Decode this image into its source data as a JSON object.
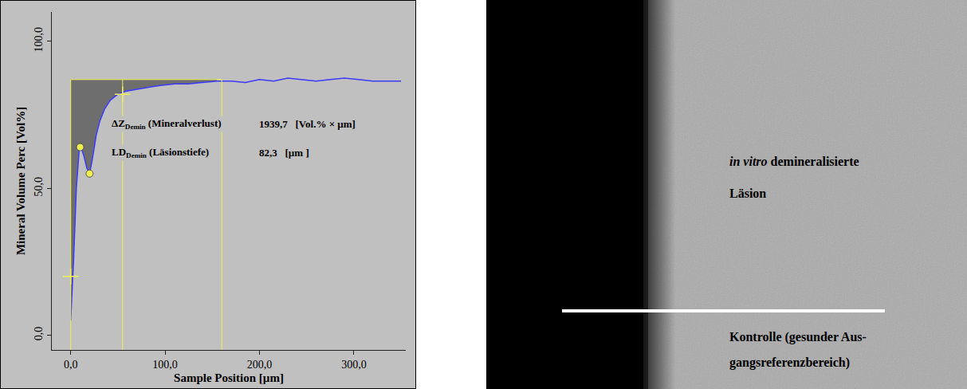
{
  "chart_data": {
    "type": "line",
    "x_label": "Sample Position [µm]",
    "y_label": "Mineral Volume Perc [Vol%]",
    "xlim": [
      -20,
      355
    ],
    "ylim": [
      -5,
      110
    ],
    "xticks": [
      {
        "value": 0,
        "label": "0,0"
      },
      {
        "value": 100,
        "label": "100,0"
      },
      {
        "value": 200,
        "label": "200,0"
      },
      {
        "value": 300,
        "label": "300,0"
      }
    ],
    "yticks": [
      {
        "value": 0,
        "label": "0,0"
      },
      {
        "value": 50,
        "label": "50,0"
      },
      {
        "value": 100,
        "label": "100,0"
      }
    ],
    "grid": false,
    "series": [
      {
        "color": "#3a3aff",
        "x": [
          0,
          3,
          6,
          9,
          11,
          14,
          17,
          20,
          23,
          27,
          31,
          36,
          42,
          50,
          58,
          66,
          75,
          85,
          95,
          110,
          125,
          140,
          155,
          170,
          185,
          200,
          215,
          230,
          245,
          260,
          275,
          290,
          305,
          320,
          335,
          350
        ],
        "values": [
          5,
          25,
          50,
          63,
          64,
          61,
          57,
          55,
          60,
          68,
          73,
          77,
          80,
          82,
          83,
          83.5,
          84,
          84.5,
          85,
          85.5,
          85.5,
          86,
          86.5,
          86.5,
          86,
          87,
          86.5,
          87.5,
          87,
          86.5,
          87,
          87.5,
          87,
          86.5,
          86.5,
          86.5
        ]
      }
    ],
    "area": {
      "level": 87,
      "color": "#6e6e6e"
    },
    "guides": {
      "level": 87,
      "x": [
        0,
        55,
        160
      ],
      "color": "#f0f050"
    },
    "points": {
      "x": [
        10,
        20
      ],
      "values": [
        64,
        55
      ],
      "color": "#f0f050"
    },
    "cross_points": {
      "x": [
        0,
        55
      ],
      "values": [
        20,
        82
      ],
      "color": "#f0f050"
    },
    "annotations": [
      {
        "symbol": "ΔZ",
        "subscript": "Demin",
        "text": "(Mineralverlust)",
        "value": "1939,7",
        "unit": "[Vol.% × µm]",
        "x": 42,
        "value_x": 198,
        "y": 72
      },
      {
        "symbol": "LD",
        "subscript": "Demin",
        "text": "(Läsionstiefe)",
        "value": "82,3",
        "unit": "[µm ]",
        "x": 42,
        "value_x": 198,
        "y": 62
      }
    ]
  },
  "image_panel": {
    "lesion_label": [
      [
        {
          "text": "in vitro",
          "italic": true
        },
        {
          "text": " demineralisierte"
        }
      ],
      [
        {
          "text": "Läsion"
        }
      ]
    ],
    "control_label": [
      [
        {
          "text": "Kontrolle (gesunder Aus-"
        }
      ],
      [
        {
          "text": "gangsreferenzbereich)"
        }
      ]
    ]
  }
}
